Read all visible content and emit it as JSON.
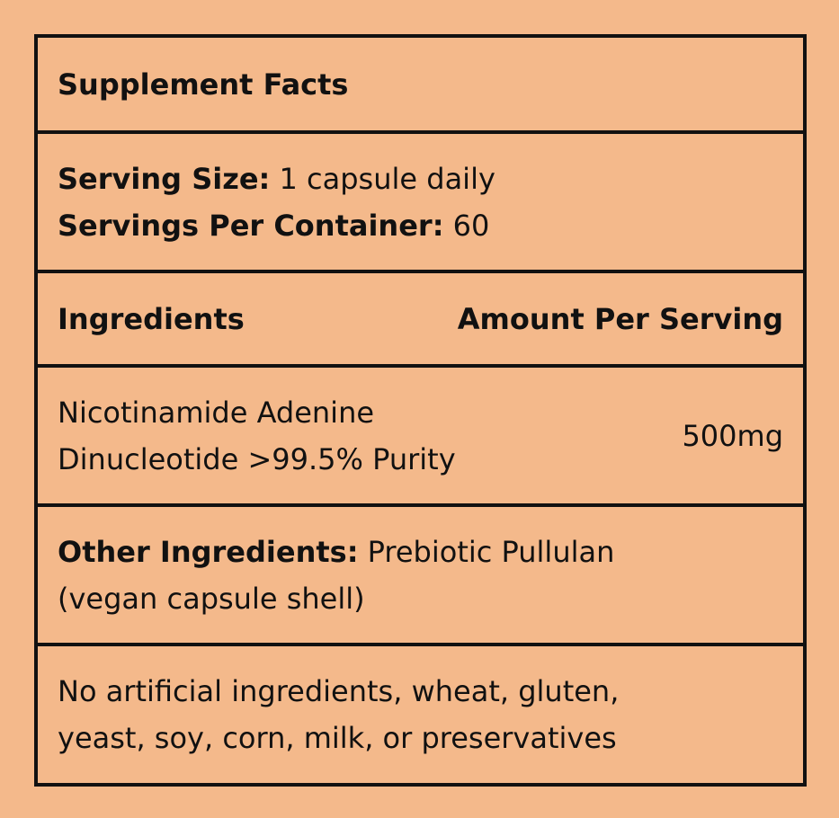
{
  "title": "Supplement Facts",
  "serving": {
    "size_label": "Serving Size:",
    "size_value": "1 capsule daily",
    "per_container_label": "Servings Per Container:",
    "per_container_value": "60"
  },
  "table": {
    "headers": [
      "Ingredients",
      "Amount Per Serving"
    ],
    "rows": [
      {
        "name_line1": "Nicotinamide Adenine",
        "name_line2": "Dinucleotide >99.5% Purity",
        "amount": "500mg"
      }
    ]
  },
  "other": {
    "label": "Other Ingredients:",
    "value_line1": "Prebiotic Pullulan",
    "value_line2": "(vegan capsule shell)"
  },
  "disclaimer": {
    "line1": "No artificial ingredients, wheat, gluten,",
    "line2": "yeast, soy, corn, milk, or preservatives"
  },
  "colors": {
    "background": "#F4B98B",
    "border": "#111111"
  }
}
